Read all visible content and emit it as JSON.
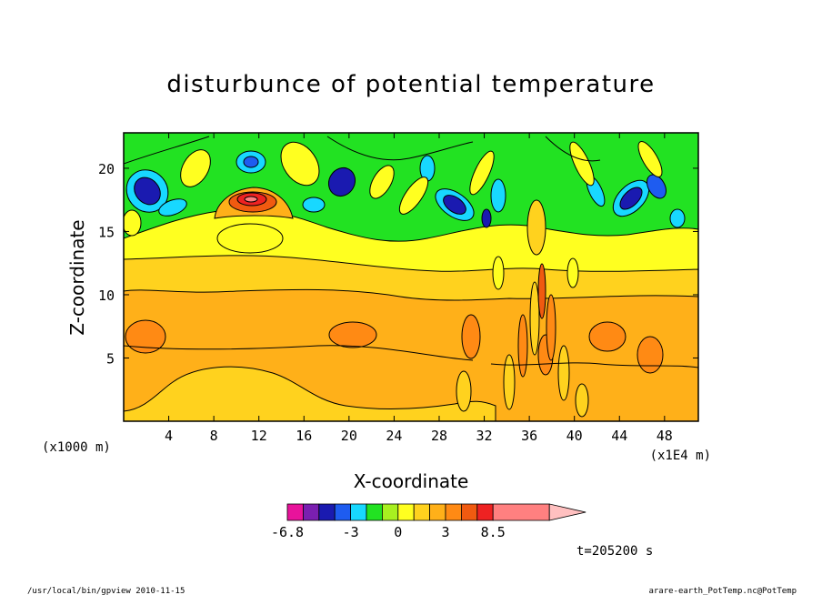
{
  "chart_data": {
    "type": "heatmap",
    "title": "disturbunce of potential temperature",
    "xlabel": "X-coordinate",
    "ylabel": "Z-coordinate",
    "x_unit_left": "(x1000 m)",
    "x_unit_right": "(x1E4 m)",
    "xlim": [
      0,
      51
    ],
    "ylim": [
      0,
      22.8
    ],
    "xticks": [
      4,
      8,
      12,
      16,
      20,
      24,
      28,
      32,
      36,
      40,
      44,
      48
    ],
    "yticks": [
      5,
      10,
      15,
      20
    ],
    "time_label": "t=205200 s",
    "footer_left": "/usr/local/bin/gpview   2010-11-15",
    "footer_right": "arare-earth_PotTemp.nc@PotTemp",
    "colorbar": {
      "levels": [
        -6.8,
        -6,
        -5,
        -4,
        -3,
        -2,
        -1,
        0,
        1,
        2,
        3,
        4,
        5,
        8.5
      ],
      "colors": [
        "#e8139b",
        "#7a1fb0",
        "#1a1ab0",
        "#1e5cf0",
        "#18d8ff",
        "#22e222",
        "#a8f020",
        "#ffff20",
        "#ffd21e",
        "#ffb019",
        "#ff8a14",
        "#f05a10",
        "#ee2222",
        "#ff8080"
      ],
      "labels": [
        {
          "text": "-6.8",
          "value": -6.8
        },
        {
          "text": "-3",
          "value": -3
        },
        {
          "text": "0",
          "value": 0
        },
        {
          "text": "3",
          "value": 3
        },
        {
          "text": "8.5",
          "value": 8.5
        }
      ]
    }
  }
}
